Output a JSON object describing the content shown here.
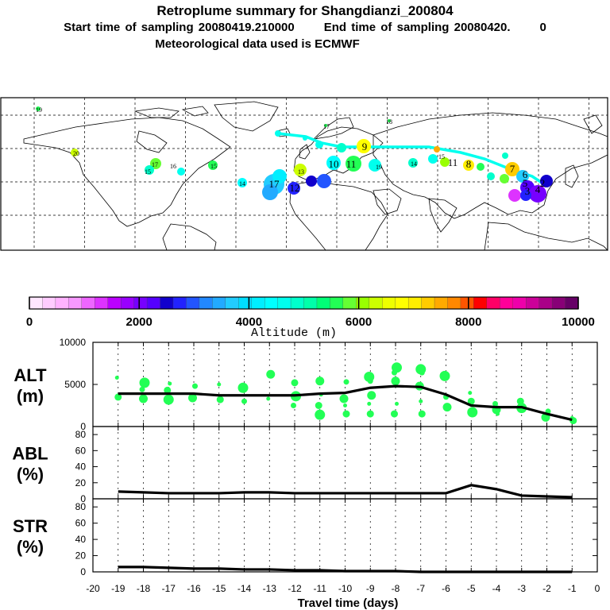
{
  "header": {
    "title": "Retroplume summary for Shangdianzi_200804",
    "start_label": "Start time of sampling 20080419.210000",
    "end_label": "End time of sampling 20080420.",
    "end_value": "0",
    "met_label": "Meteorological data used is ECMWF"
  },
  "colorbar": {
    "label": "Altitude (m)",
    "ticks": [
      "0",
      "2000",
      "4000",
      "6000",
      "8000",
      "10000"
    ],
    "colors": [
      "#ffe6ff",
      "#ffccff",
      "#ffb3ff",
      "#f799ff",
      "#ee66ff",
      "#dd33ff",
      "#bb00ff",
      "#9900ff",
      "#7700ff",
      "#5500ff",
      "#1100cc",
      "#2222ff",
      "#2255ff",
      "#2288ff",
      "#22aaff",
      "#22ccff",
      "#00ddff",
      "#00eeff",
      "#00ffff",
      "#00ffee",
      "#00ffcc",
      "#00ffaa",
      "#00ff77",
      "#22ff55",
      "#66ff33",
      "#99ff00",
      "#ccff00",
      "#eeff00",
      "#ffff00",
      "#ffee00",
      "#ffcc00",
      "#ffaa00",
      "#ff8800",
      "#ff5500",
      "#ff0000",
      "#ff0066",
      "#ff0099",
      "#ee00aa",
      "#cc0099",
      "#aa0088",
      "#880077",
      "#660066"
    ]
  },
  "map": {
    "labels": [
      {
        "t": "19",
        "c": "#22ff55"
      },
      {
        "t": "18",
        "c": "#00ffee"
      },
      {
        "t": "17",
        "c": "#00ffcc"
      },
      {
        "t": "20",
        "c": "#ccff00"
      },
      {
        "t": "17",
        "c": "#00ffaa"
      },
      {
        "t": "16",
        "c": "#66ff33"
      },
      {
        "t": "15",
        "c": "#22ff55"
      },
      {
        "t": "15",
        "c": "#00ffcc"
      },
      {
        "t": "14",
        "c": "#00ffff"
      },
      {
        "t": "17",
        "c": "#22aaff"
      },
      {
        "t": "13",
        "c": "#ccff00"
      },
      {
        "t": "12",
        "c": "#2222ff"
      },
      {
        "t": "10",
        "c": "#00ffee"
      },
      {
        "t": "11",
        "c": "#00ffff"
      },
      {
        "t": "9",
        "c": "#ffff00"
      },
      {
        "t": "19",
        "c": "#00ffee"
      },
      {
        "t": "14",
        "c": "#00ffcc"
      },
      {
        "t": "15",
        "c": "#00ffcc"
      },
      {
        "t": "11",
        "c": "#ccff00"
      },
      {
        "t": "8",
        "c": "#ffcc00"
      },
      {
        "t": "7",
        "c": "#ffaa00"
      },
      {
        "t": "6",
        "c": "#00ffcc"
      },
      {
        "t": "5",
        "c": "#22ccff"
      },
      {
        "t": "3",
        "c": "#5500ff"
      },
      {
        "t": "4",
        "c": "#7700ff"
      },
      {
        "t": "2",
        "c": "#1100cc"
      }
    ]
  },
  "chart_data": [
    {
      "type": "scatter+line",
      "ylabel_line1": "ALT",
      "ylabel_line2": "(m)",
      "ylim": [
        0,
        10000
      ],
      "yticks": [
        "0",
        "5000",
        "10000"
      ],
      "x": [
        -19,
        -18,
        -17,
        -16,
        -15,
        -14,
        -13,
        -12,
        -11,
        -10,
        -9,
        -8,
        -7,
        -6,
        -5,
        -4,
        -3,
        -2,
        -1
      ],
      "values": [
        3900,
        3900,
        3900,
        3900,
        3700,
        3700,
        3700,
        3700,
        3900,
        4000,
        4600,
        4800,
        4700,
        3800,
        2500,
        2300,
        2300,
        1500,
        800
      ],
      "cluster_points": [
        [
          [
            -19,
            5800
          ],
          [
            -19,
            3500
          ],
          [
            -18,
            5200
          ],
          [
            -18,
            4400
          ],
          [
            -18,
            3300
          ],
          [
            -17,
            5100
          ],
          [
            -17,
            4300
          ],
          [
            -17,
            3200
          ],
          [
            -16,
            4800
          ],
          [
            -16,
            3400
          ],
          [
            -15,
            5000
          ],
          [
            -15,
            3200
          ],
          [
            -14,
            4600
          ],
          [
            -14,
            3000
          ],
          [
            -13,
            6200
          ],
          [
            -13,
            3300
          ],
          [
            -12,
            5200
          ],
          [
            -12,
            3600
          ],
          [
            -12,
            2500
          ],
          [
            -11,
            5400
          ],
          [
            -11,
            3800
          ],
          [
            -11,
            2500
          ],
          [
            -11,
            1400
          ],
          [
            -10,
            5300
          ],
          [
            -10,
            3300
          ],
          [
            -10,
            2500
          ],
          [
            -10,
            1500
          ],
          [
            -9,
            5900
          ],
          [
            -9,
            5400
          ],
          [
            -9,
            3700
          ],
          [
            -9,
            2700
          ],
          [
            -9,
            1500
          ],
          [
            -8,
            7000
          ],
          [
            -8,
            6400
          ],
          [
            -8,
            5400
          ],
          [
            -8,
            2700
          ],
          [
            -8,
            1500
          ],
          [
            -7,
            6800
          ],
          [
            -7,
            6400
          ],
          [
            -7,
            4800
          ],
          [
            -7,
            3000
          ],
          [
            -7,
            1500
          ],
          [
            -6,
            6000
          ],
          [
            -6,
            3500
          ],
          [
            -6,
            2300
          ],
          [
            -5,
            4000
          ],
          [
            -5,
            3000
          ],
          [
            -5,
            1700
          ],
          [
            -4,
            2700
          ],
          [
            -4,
            2000
          ],
          [
            -4,
            1500
          ],
          [
            -3,
            3000
          ],
          [
            -3,
            2200
          ],
          [
            -2,
            1800
          ],
          [
            -2,
            1100
          ],
          [
            -1,
            1000
          ],
          [
            -1,
            700
          ]
        ]
      ]
    },
    {
      "type": "line",
      "ylabel_line1": "ABL",
      "ylabel_line2": "(%)",
      "ylim": [
        0,
        90
      ],
      "yticks": [
        "0",
        "20",
        "40",
        "60",
        "80"
      ],
      "x": [
        -19,
        -18,
        -17,
        -16,
        -15,
        -14,
        -13,
        -12,
        -11,
        -10,
        -9,
        -8,
        -7,
        -6,
        -5,
        -4,
        -3,
        -2,
        -1
      ],
      "values": [
        9,
        8,
        7,
        7,
        7,
        8,
        8,
        7,
        7,
        7,
        7,
        7,
        7,
        7,
        17,
        12,
        4,
        3,
        2
      ]
    },
    {
      "type": "line",
      "ylabel_line1": "STR",
      "ylabel_line2": "(%)",
      "ylim": [
        0,
        90
      ],
      "yticks": [
        "0",
        "20",
        "40",
        "60",
        "80"
      ],
      "x": [
        -19,
        -18,
        -17,
        -16,
        -15,
        -14,
        -13,
        -12,
        -11,
        -10,
        -9,
        -8,
        -7,
        -6,
        -5,
        -4,
        -3,
        -2,
        -1
      ],
      "values": [
        6,
        6,
        5,
        4,
        4,
        3,
        3,
        2,
        2,
        1,
        1,
        1,
        0,
        0,
        0,
        0,
        0,
        0,
        0
      ],
      "xlabel": "Travel time (days)",
      "xlim": [
        -20,
        0
      ],
      "xticks": [
        "-20",
        "-19",
        "-18",
        "-17",
        "-16",
        "-15",
        "-14",
        "-13",
        "-12",
        "-11",
        "-10",
        "-9",
        "-8",
        "-7",
        "-6",
        "-5",
        "-4",
        "-3",
        "-2",
        "-1",
        "0"
      ]
    }
  ]
}
